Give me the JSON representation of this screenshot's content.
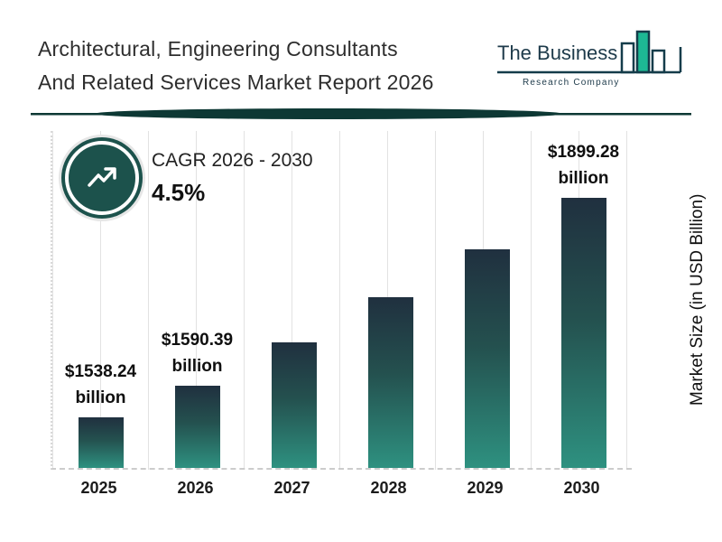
{
  "header": {
    "title_line1": "Architectural, Engineering Consultants",
    "title_line2": "And Related Services Market Report 2026",
    "logo": {
      "line1": "The Business",
      "line2": "Research Company"
    }
  },
  "cagr": {
    "label": "CAGR 2026 - 2030",
    "value": "4.5%"
  },
  "chart_data": {
    "type": "bar",
    "title": "Architectural, Engineering Consultants And Related Services Market Report 2026",
    "categories": [
      "2025",
      "2026",
      "2027",
      "2028",
      "2029",
      "2030"
    ],
    "values": [
      1538.24,
      1590.39,
      1662.0,
      1737.0,
      1815.0,
      1899.28
    ],
    "bar_labels": {
      "2025": "$1538.24 billion",
      "2026": "$1590.39 billion",
      "2030": "$1899.28 billion"
    },
    "xlabel": "",
    "ylabel": "Market Size (in USD Billion)",
    "ylim": [
      1455,
      2010
    ],
    "grid": "vertical-lines",
    "legend": "none",
    "colors": {
      "bar_top": "#20303f",
      "bar_bottom": "#2e9180",
      "accent_dark_teal": "#0d3834",
      "logo_green": "#1db894"
    }
  }
}
